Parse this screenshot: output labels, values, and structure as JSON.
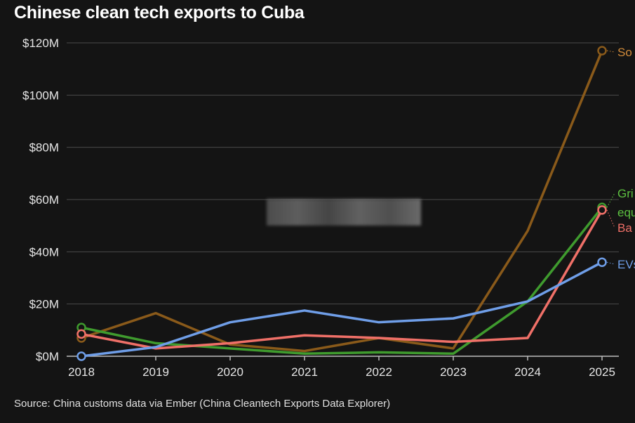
{
  "title": "Chinese clean tech exports to Cuba",
  "source": "Source: China customs data via Ember (China Cleantech Exports Data Explorer)",
  "chart_data": {
    "type": "line",
    "title": "Chinese clean tech exports to Cuba",
    "xlabel": "",
    "ylabel": "",
    "categories": [
      "2018",
      "2019",
      "2020",
      "2021",
      "2022",
      "2023",
      "2024",
      "2025"
    ],
    "ylim": [
      0,
      120
    ],
    "yticks": [
      0,
      20,
      40,
      60,
      80,
      100,
      120
    ],
    "ytick_labels": [
      "$0M",
      "$20M",
      "$40M",
      "$60M",
      "$80M",
      "$100M",
      "$120M"
    ],
    "grid": true,
    "series": [
      {
        "name": "So",
        "color": "#8a5a1a",
        "label_color": "#d08a3a",
        "values": [
          7,
          16.5,
          4.5,
          2,
          7,
          3,
          48,
          117
        ],
        "label_lines": [
          "So"
        ]
      },
      {
        "name": "Gri equ",
        "color": "#3f9b2e",
        "label_color": "#5cc040",
        "values": [
          11,
          5,
          3,
          1,
          1.5,
          1,
          21,
          57
        ],
        "label_lines": [
          "Gri",
          "equ"
        ]
      },
      {
        "name": "Ba",
        "color": "#f07068",
        "label_color": "#f07068",
        "values": [
          8.5,
          3,
          5,
          8,
          7,
          5.5,
          7,
          56
        ],
        "label_lines": [
          "Ba"
        ]
      },
      {
        "name": "EVs",
        "color": "#6f9ee8",
        "label_color": "#6f9ee8",
        "values": [
          0,
          3.5,
          13,
          17.5,
          13,
          14.5,
          21,
          36
        ],
        "label_lines": [
          "EVs"
        ]
      }
    ]
  }
}
